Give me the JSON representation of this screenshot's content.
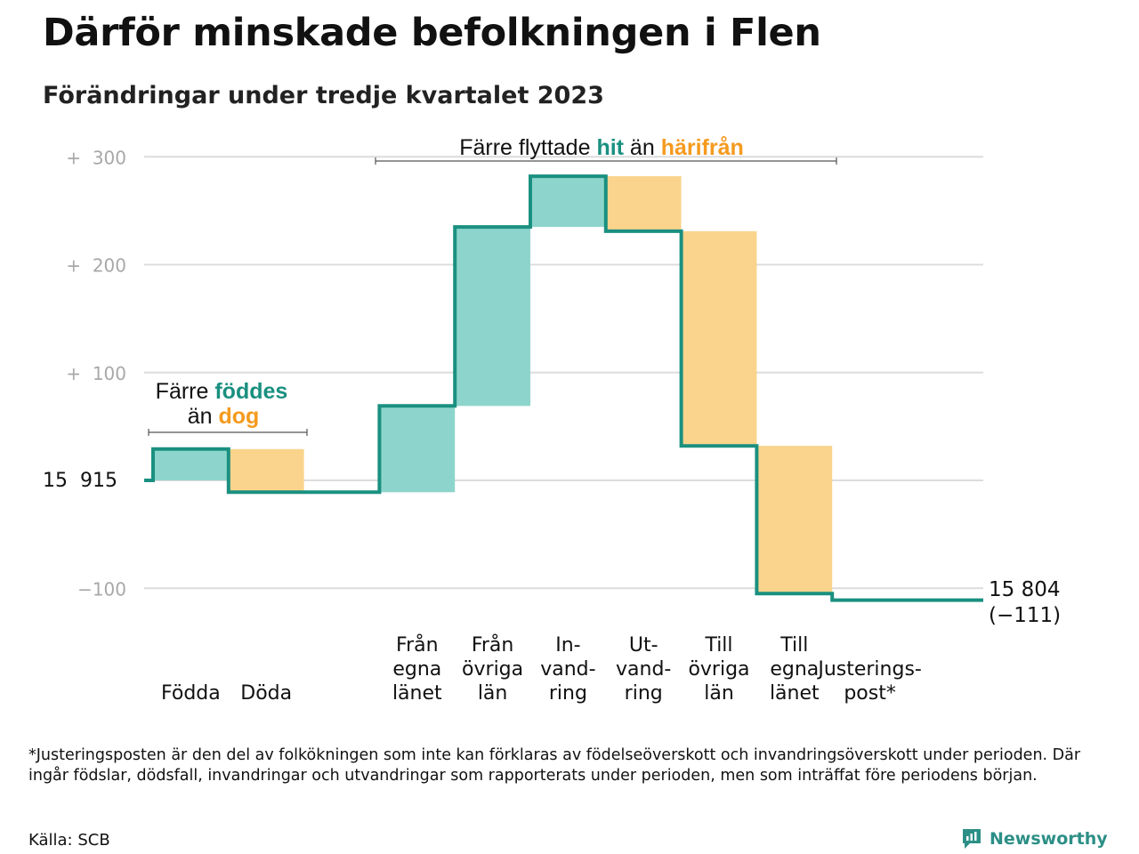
{
  "title": "Därför minskade befolkningen i Flen",
  "subtitle": "Förändringar under tredje kvartalet 2023",
  "colors": {
    "increase": "#8dd5cc",
    "decrease": "#fad48c",
    "line": "#1a9080",
    "hit": "#1a9080",
    "harifran": "#f59a1e",
    "grid": "#dcdcdc",
    "tick": "#a8a8a8"
  },
  "annotations": {
    "birth_line1_prefix": "Färre ",
    "birth_line1_accent": "föddes",
    "birth_line2_prefix": "än ",
    "birth_line2_accent": "dog",
    "migration_prefix": "Färre flyttade ",
    "migration_accent1": "hit",
    "migration_mid": " än ",
    "migration_accent2": "härifrån"
  },
  "chart_data": {
    "type": "waterfall",
    "start_value": 15915,
    "start_label": "15  915",
    "end_value": 15804,
    "end_label_line1": "15 804",
    "end_label_line2": "(−111)",
    "y_ticks": [
      {
        "value": 300,
        "label": "+  300"
      },
      {
        "value": 200,
        "label": "+  200"
      },
      {
        "value": 100,
        "label": "+  100"
      },
      {
        "value": -100,
        "label": "−100"
      }
    ],
    "ylim": [
      -100,
      300
    ],
    "grid": true,
    "steps": [
      {
        "category": "Födda",
        "label_lines": [
          "Födda"
        ],
        "change": 29,
        "direction": "increase"
      },
      {
        "category": "Döda",
        "label_lines": [
          "Döda"
        ],
        "change": -40,
        "direction": "decrease"
      },
      {
        "category": "",
        "label_lines": [],
        "change": 0,
        "direction": "none"
      },
      {
        "category": "Från egna länet",
        "label_lines": [
          "Från",
          "egna",
          "länet"
        ],
        "change": 80,
        "direction": "increase"
      },
      {
        "category": "Från övriga län",
        "label_lines": [
          "Från",
          "övriga",
          "län"
        ],
        "change": 166,
        "direction": "increase"
      },
      {
        "category": "In-vand-ring",
        "label_lines": [
          "In-",
          "vand-",
          "ring"
        ],
        "change": 47,
        "direction": "increase"
      },
      {
        "category": "Ut-vand-ring",
        "label_lines": [
          "Ut-",
          "vand-",
          "ring"
        ],
        "change": -51,
        "direction": "decrease"
      },
      {
        "category": "Till övriga län",
        "label_lines": [
          "Till",
          "övriga",
          "län"
        ],
        "change": -199,
        "direction": "decrease"
      },
      {
        "category": "Till egna länet",
        "label_lines": [
          "Till",
          "egna",
          "länet"
        ],
        "change": -137,
        "direction": "decrease"
      },
      {
        "category": "Justerings-post*",
        "label_lines": [
          "Justerings-",
          "post*"
        ],
        "change": -6,
        "direction": "adjustment"
      }
    ]
  },
  "footnote": "*Justeringsposten är den del av folkökningen som inte kan förklaras av födelseöverskott och invandringsöverskott under perioden. Där ingår födslar, dödsfall, invandringar och utvandringar som rapporterats under perioden, men som inträffat före periodens början.",
  "source": "Källa: SCB",
  "brand": {
    "name": "Newsworthy",
    "icon": "newsworthy-logo-icon"
  }
}
